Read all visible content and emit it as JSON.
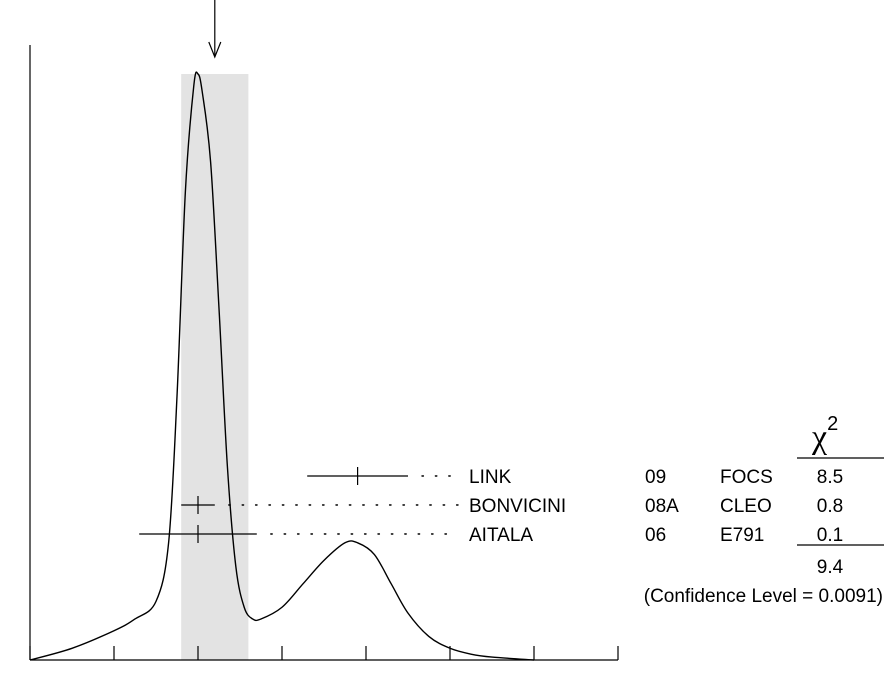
{
  "chart_data": {
    "type": "line",
    "title": "",
    "xlabel": "",
    "ylabel": "",
    "xlim": [
      -0.2,
      1.2
    ],
    "x_ticks": [
      "-0.2",
      "0",
      "0.2",
      "0.4",
      "0.6",
      "0.8",
      "1",
      "1.2"
    ],
    "x_tick_values": [
      -0.2,
      0,
      0.2,
      0.4,
      0.6,
      0.8,
      1.0,
      1.2
    ],
    "average": {
      "value": 0.24,
      "band": [
        0.16,
        0.32
      ],
      "arrow": true,
      "band_color": "#e3e3e3"
    },
    "ideogram": {
      "x": [
        -0.2,
        -0.1,
        0.0,
        0.05,
        0.1,
        0.13,
        0.15,
        0.17,
        0.19,
        0.2,
        0.21,
        0.23,
        0.25,
        0.27,
        0.29,
        0.31,
        0.33,
        0.35,
        0.4,
        0.45,
        0.5,
        0.55,
        0.58,
        0.62,
        0.66,
        0.7,
        0.75,
        0.8,
        0.85,
        0.9,
        1.0
      ],
      "y": [
        0.0,
        0.02,
        0.05,
        0.07,
        0.1,
        0.2,
        0.45,
        0.8,
        0.98,
        1.0,
        0.97,
        0.85,
        0.6,
        0.33,
        0.16,
        0.09,
        0.07,
        0.07,
        0.09,
        0.13,
        0.17,
        0.2,
        0.2,
        0.18,
        0.13,
        0.08,
        0.04,
        0.02,
        0.01,
        0.005,
        0.0
      ]
    },
    "measurements": [
      {
        "author": "LINK",
        "year": "09",
        "experiment": "FOCS",
        "value": 0.58,
        "error": 0.12,
        "chi2": "8.5"
      },
      {
        "author": "BONVICINI",
        "year": "08A",
        "experiment": "CLEO",
        "value": 0.2,
        "error": 0.04,
        "chi2": "0.8"
      },
      {
        "author": "AITALA",
        "year": "06",
        "experiment": "E791",
        "value": 0.2,
        "error": 0.14,
        "chi2": "0.1"
      }
    ],
    "chi2_header_base": "χ",
    "chi2_header_sup": "2",
    "chi2_total": "9.4",
    "confidence_text": "(Confidence Level = 0.0091)"
  }
}
